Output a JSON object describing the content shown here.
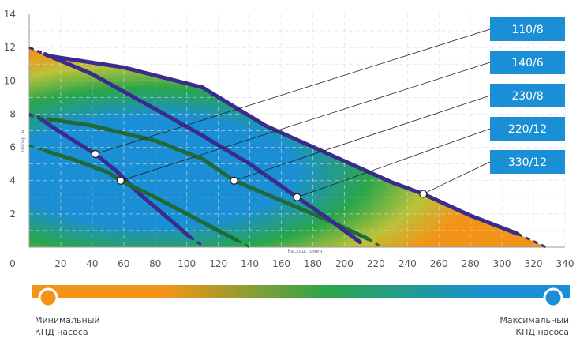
{
  "chart_data": {
    "type": "line",
    "title": "",
    "xlabel": "Расход, л/мин",
    "ylabel": "Напор, м",
    "xlim": [
      0,
      340
    ],
    "ylim": [
      0,
      14
    ],
    "x_ticks": [
      0,
      20,
      40,
      60,
      80,
      100,
      120,
      140,
      160,
      180,
      200,
      220,
      240,
      260,
      280,
      300,
      320,
      340
    ],
    "y_ticks": [
      2,
      4,
      6,
      8,
      10,
      12,
      14
    ],
    "grid": true,
    "series": [
      {
        "name": "110/8",
        "color": "#3a2c8c",
        "x": [
          6,
          15,
          30,
          42,
          55,
          70,
          90,
          102
        ],
        "y": [
          7.8,
          7.2,
          6.3,
          5.6,
          4.6,
          3.2,
          1.6,
          0.6
        ],
        "dash_x": [
          0,
          6,
          102,
          110
        ],
        "dash_y": [
          8.0,
          7.8,
          0.6,
          0.1
        ],
        "marker": [
          42,
          5.6
        ]
      },
      {
        "name": "140/6",
        "color": "#1e6a3a",
        "x": [
          10,
          30,
          50,
          58,
          80,
          100,
          120,
          132
        ],
        "y": [
          5.8,
          5.2,
          4.5,
          4.0,
          3.0,
          2.0,
          1.0,
          0.4
        ],
        "dash_x": [
          0,
          10,
          132,
          140
        ],
        "dash_y": [
          6.1,
          5.8,
          0.4,
          0.0
        ],
        "marker": [
          58,
          4.0
        ]
      },
      {
        "name": "230/8",
        "color": "#1e6a3a",
        "x": [
          12,
          40,
          80,
          110,
          130,
          160,
          190,
          215
        ],
        "y": [
          7.7,
          7.3,
          6.4,
          5.3,
          4.0,
          2.8,
          1.6,
          0.5
        ],
        "dash_x": [
          0,
          12,
          215,
          222
        ],
        "dash_y": [
          7.9,
          7.7,
          0.5,
          0.1
        ],
        "marker": [
          130,
          4.0
        ]
      },
      {
        "name": "220/12",
        "color": "#3a2c8c",
        "x": [
          10,
          40,
          80,
          110,
          140,
          170,
          190,
          210
        ],
        "y": [
          11.6,
          10.4,
          8.3,
          6.7,
          5.0,
          3.0,
          1.7,
          0.3
        ],
        "dash_x": [
          0,
          10
        ],
        "dash_y": [
          12.0,
          11.6
        ],
        "marker": [
          170,
          3.0
        ]
      },
      {
        "name": "330/12",
        "color": "#3a2c8c",
        "x": [
          12,
          60,
          110,
          150,
          190,
          230,
          250,
          280,
          310
        ],
        "y": [
          11.5,
          10.8,
          9.6,
          7.3,
          5.6,
          3.9,
          3.2,
          1.9,
          0.8
        ],
        "dash_x": [
          0,
          12,
          310,
          328
        ],
        "dash_y": [
          12.0,
          11.5,
          0.8,
          0.0
        ],
        "marker": [
          250,
          3.2
        ]
      }
    ],
    "label_order": [
      "110/8",
      "140/6",
      "230/8",
      "220/12",
      "330/12"
    ],
    "label_color": "#1b8fd6",
    "efficiency_scale": {
      "min_label_line1": "Минимальный",
      "min_label_line2": "КПД насоса",
      "max_label_line1": "Максимальный",
      "max_label_line2": "КПД насоса",
      "min_color": "#f39418",
      "mid_color": "#2aa64a",
      "max_color": "#1b8fd6"
    }
  }
}
